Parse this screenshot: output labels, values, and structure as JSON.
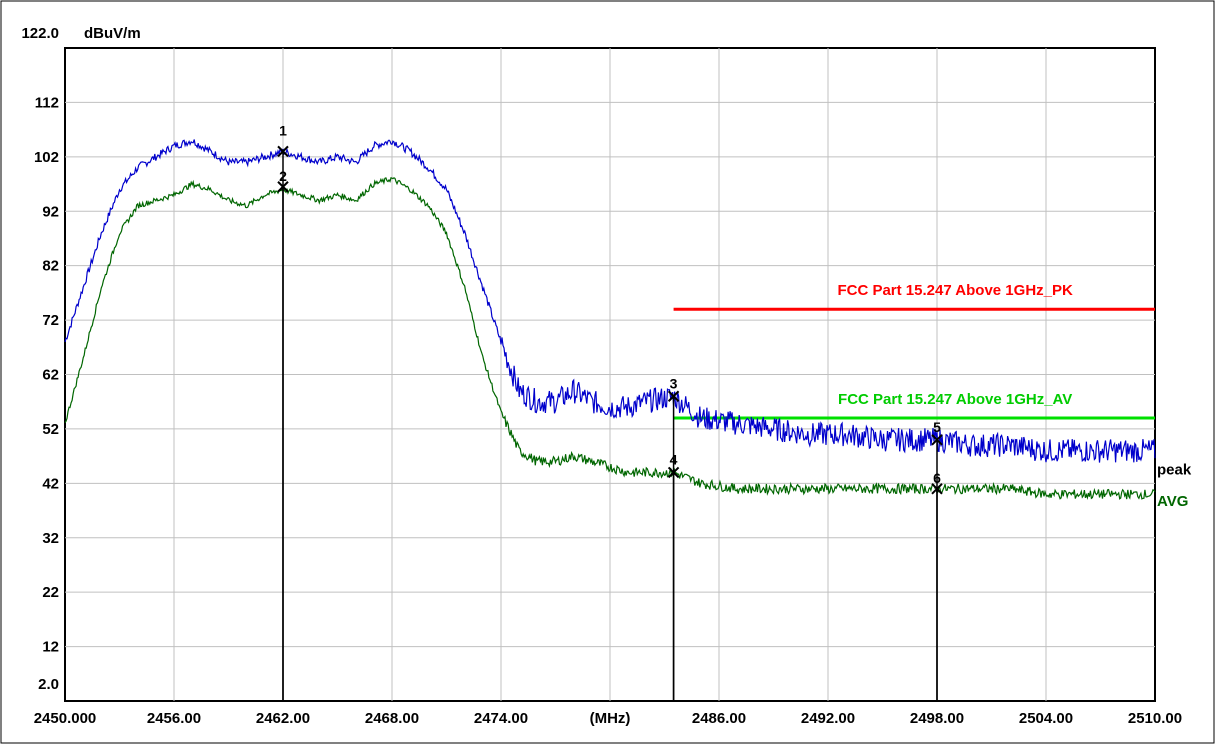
{
  "chart_data": {
    "type": "line",
    "ylabel": "dBuV/m",
    "xlabel": "(MHz)",
    "xlim": [
      2450.0,
      2510.0
    ],
    "ylim": [
      2.0,
      122.0
    ],
    "y_ticks": [
      {
        "value": 122.0,
        "label": "122.0"
      },
      {
        "value": 112,
        "label": "112"
      },
      {
        "value": 102,
        "label": "102"
      },
      {
        "value": 92,
        "label": "92"
      },
      {
        "value": 82,
        "label": "82"
      },
      {
        "value": 72,
        "label": "72"
      },
      {
        "value": 62,
        "label": "62"
      },
      {
        "value": 52,
        "label": "52"
      },
      {
        "value": 42,
        "label": "42"
      },
      {
        "value": 32,
        "label": "32"
      },
      {
        "value": 22,
        "label": "22"
      },
      {
        "value": 12,
        "label": "12"
      },
      {
        "value": 2.0,
        "label": "2.0"
      }
    ],
    "x_ticks": [
      {
        "value": 2450.0,
        "label": "2450.000"
      },
      {
        "value": 2456,
        "label": "2456.00"
      },
      {
        "value": 2462,
        "label": "2462.00"
      },
      {
        "value": 2468,
        "label": "2468.00"
      },
      {
        "value": 2474,
        "label": "2474.00"
      },
      {
        "value": 2480,
        "label": "(MHz)"
      },
      {
        "value": 2486,
        "label": "2486.00"
      },
      {
        "value": 2492,
        "label": "2492.00"
      },
      {
        "value": 2498,
        "label": "2498.00"
      },
      {
        "value": 2504,
        "label": "2504.00"
      },
      {
        "value": 2510,
        "label": "2510.00"
      }
    ],
    "grid": true,
    "limits": [
      {
        "name": "FCC Part 15.247 Above 1GHz_PK",
        "value": 74.0,
        "x_start": 2483.5,
        "x_end": 2510.0,
        "color": "#ff0000"
      },
      {
        "name": "FCC Part 15.247 Above 1GHz_AV",
        "value": 54.0,
        "x_start": 2483.5,
        "x_end": 2510.0,
        "color": "#00e000"
      }
    ],
    "series": [
      {
        "name": "peak",
        "color": "#0000cc",
        "x": [
          2450.0,
          2451.0,
          2452.0,
          2453.0,
          2454.0,
          2455.0,
          2456.0,
          2457.0,
          2458.0,
          2459.0,
          2460.0,
          2461.0,
          2462.0,
          2463.0,
          2464.0,
          2465.0,
          2466.0,
          2467.0,
          2468.0,
          2469.0,
          2470.0,
          2471.0,
          2472.0,
          2473.0,
          2474.0,
          2475.0,
          2476.0,
          2477.0,
          2478.0,
          2479.0,
          2480.0,
          2481.0,
          2482.0,
          2483.5,
          2485.0,
          2487.0,
          2489.0,
          2491.0,
          2493.0,
          2495.0,
          2497.0,
          2498.0,
          2500.0,
          2502.0,
          2504.0,
          2506.0,
          2508.0,
          2510.0
        ],
        "values": [
          68,
          78,
          88,
          96,
          100,
          102,
          104,
          105,
          103,
          101,
          101,
          102,
          103,
          102,
          101,
          102,
          101,
          104,
          105,
          103,
          100,
          96,
          88,
          78,
          68,
          59,
          57,
          57,
          59,
          57,
          56,
          56,
          57,
          58,
          54,
          53,
          52,
          51,
          51,
          50,
          50,
          50,
          49,
          49,
          48,
          48,
          48,
          48
        ]
      },
      {
        "name": "AVG",
        "color": "#006600",
        "x": [
          2450.0,
          2451.0,
          2452.0,
          2453.0,
          2454.0,
          2455.0,
          2456.0,
          2457.0,
          2458.0,
          2459.0,
          2460.0,
          2461.0,
          2462.0,
          2463.0,
          2464.0,
          2465.0,
          2466.0,
          2467.0,
          2468.0,
          2469.0,
          2470.0,
          2471.0,
          2472.0,
          2473.0,
          2474.0,
          2475.0,
          2476.0,
          2477.0,
          2478.0,
          2479.0,
          2480.0,
          2481.0,
          2482.0,
          2483.5,
          2485.0,
          2487.0,
          2489.0,
          2491.0,
          2493.0,
          2495.0,
          2497.0,
          2498.0,
          2500.0,
          2502.0,
          2504.0,
          2506.0,
          2508.0,
          2510.0
        ],
        "values": [
          53,
          65,
          78,
          88,
          93,
          94,
          95,
          97,
          96,
          94,
          93,
          95,
          96,
          95,
          94,
          95,
          94,
          97,
          98,
          96,
          93,
          88,
          78,
          65,
          55,
          48,
          46,
          46,
          47,
          46,
          45,
          44,
          44,
          44,
          42,
          41,
          41,
          41,
          41,
          41,
          41,
          41,
          41,
          41,
          40,
          40,
          40,
          40
        ]
      }
    ],
    "markers": [
      {
        "label": "1",
        "x": 2462.0,
        "y": 103.0,
        "ylabel_offset": -20
      },
      {
        "label": "2",
        "x": 2462.0,
        "y": 96.5,
        "ylabel_offset": -10
      },
      {
        "label": "3",
        "x": 2483.5,
        "y": 58.0,
        "ylabel_offset": -12
      },
      {
        "label": "4",
        "x": 2483.5,
        "y": 44.0,
        "ylabel_offset": -12
      },
      {
        "label": "5",
        "x": 2498.0,
        "y": 50.0,
        "ylabel_offset": -12
      },
      {
        "label": "6",
        "x": 2498.0,
        "y": 41.0,
        "ylabel_offset": -10
      }
    ]
  }
}
